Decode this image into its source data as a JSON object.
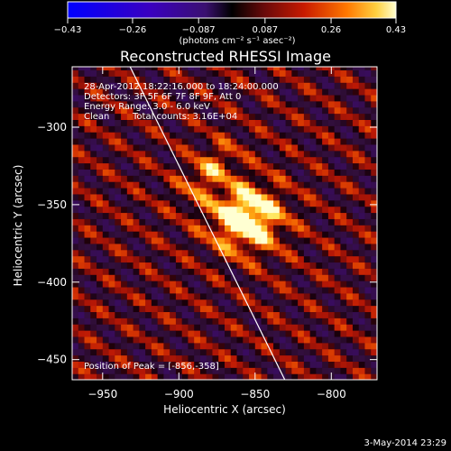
{
  "chart_data": {
    "type": "heatmap",
    "title": "Reconstructed RHESSI Image",
    "xlabel": "Heliocentric X (arcsec)",
    "ylabel": "Heliocentric Y (arcsec)",
    "xlim": [
      -970,
      -770
    ],
    "ylim": [
      -463,
      -261
    ],
    "x_ticks": [
      -950,
      -900,
      -850,
      -800
    ],
    "x_tick_labels": [
      "−950",
      "−900",
      "−850",
      "−800"
    ],
    "y_ticks": [
      -450,
      -400,
      -350,
      -300
    ],
    "y_tick_labels": [
      "−450",
      "−400",
      "−350",
      "−300"
    ],
    "colorbar": {
      "range": [
        -0.43,
        0.43
      ],
      "ticks": [
        -0.43,
        -0.26,
        -0.087,
        0.087,
        0.26,
        0.43
      ],
      "tick_labels": [
        "−0.43",
        "−0.26",
        "−0.087",
        "0.087",
        "0.26",
        "0.43"
      ],
      "unit_label": "(photons cm⁻² s⁻¹ asec⁻²)"
    },
    "annotations": [
      "28-Apr-2012 18:22:16.000 to 18:24:00.000",
      "Detectors: 3F 5F 6F 7F 8F 9F, Att 0",
      "Energy Range: 3.0 - 6.0 keV",
      "Clean",
      "Total counts: 3.16E+04"
    ],
    "peak_label": "Position of Peak = [-856,-358]",
    "peak": {
      "x": -856,
      "y": -358,
      "value": 0.43
    },
    "limb_line": [
      [
        -935,
        -255
      ],
      [
        -827,
        -470
      ]
    ],
    "grid": false
  },
  "timestamp": "3-May-2014 23:29",
  "colors": {
    "background": "#000000",
    "text": "#ffffff",
    "negative_min": "#1a1aff",
    "positive_max": "#ffffd0"
  }
}
